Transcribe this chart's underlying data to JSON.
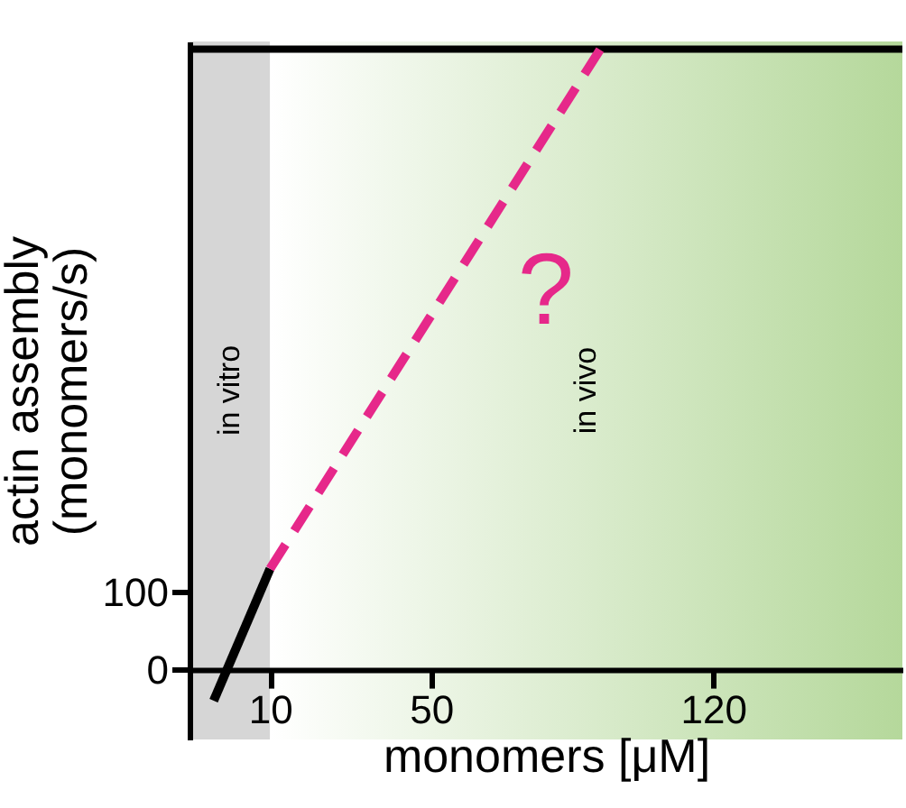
{
  "chart_data": {
    "type": "line",
    "xlabel": "monomers [μM]",
    "ylabel": "actin assembly\n(monomers/s)",
    "xlim": [
      -10,
      167
    ],
    "ylim": [
      -90,
      810
    ],
    "xticks": [
      10,
      50,
      120
    ],
    "yticks": [
      0,
      100
    ],
    "series": [
      {
        "x": [
          -4,
          10
        ],
        "values": [
          -40,
          130
        ],
        "color": "#000000",
        "line_style": "solid"
      },
      {
        "x": [
          10,
          92
        ],
        "values": [
          130,
          800
        ],
        "color": "#e6288a",
        "line_style": "dashed"
      }
    ],
    "bands": [
      {
        "axis": "x",
        "from": -10,
        "to": 10,
        "label": "in vitro",
        "color": "#d6d6d6"
      },
      {
        "axis": "x",
        "from": 10,
        "to": 167,
        "label": "in vivo",
        "color": "#b5d89b"
      }
    ],
    "ref_lines": [
      {
        "axis": "y",
        "value": 800,
        "color": "#000000"
      }
    ],
    "annotations": [
      "?"
    ]
  }
}
